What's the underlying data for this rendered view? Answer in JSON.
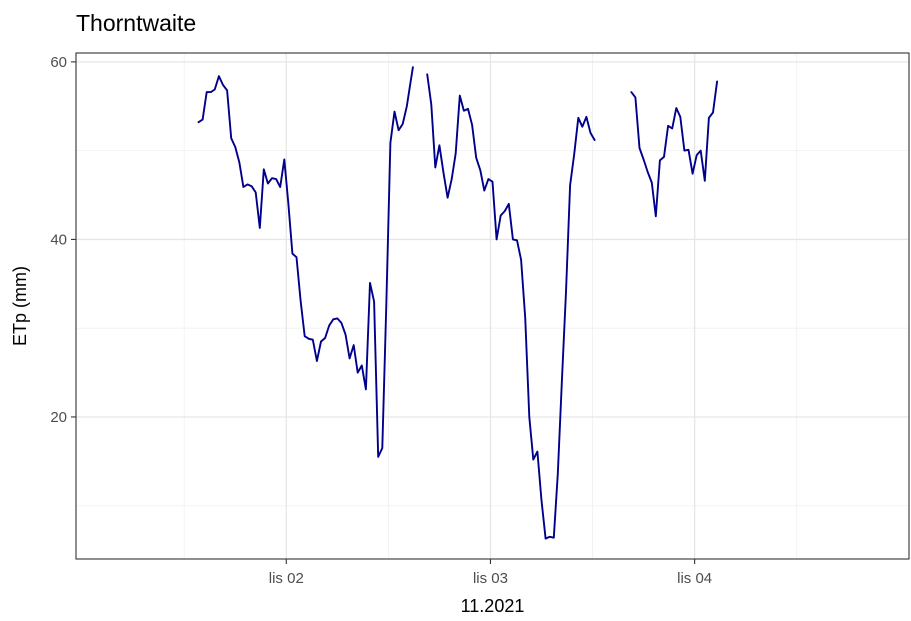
{
  "chart_data": {
    "type": "line",
    "title": "Thorntwaite",
    "xlabel": "11.2021",
    "ylabel": "ETp (mm)",
    "xlim": [
      -1.03,
      3.05
    ],
    "ylim": [
      4.0,
      61.0
    ],
    "grid": true,
    "legend": "none",
    "x_ticks": [
      {
        "value": 0,
        "label": "lis 02"
      },
      {
        "value": 1,
        "label": "lis 03"
      },
      {
        "value": 2,
        "label": "lis 04"
      }
    ],
    "y_ticks": [
      {
        "value": 20,
        "label": "20"
      },
      {
        "value": 40,
        "label": "40"
      },
      {
        "value": 60,
        "label": "60"
      }
    ],
    "series": [
      {
        "color": "#00008b",
        "segments": [
          [
            [
              -0.43,
              53.2
            ],
            [
              -0.41,
              53.5
            ],
            [
              -0.39,
              56.6
            ],
            [
              -0.37,
              56.6
            ],
            [
              -0.35,
              56.9
            ],
            [
              -0.33,
              58.4
            ],
            [
              -0.31,
              57.4
            ],
            [
              -0.29,
              56.8
            ],
            [
              -0.27,
              51.4
            ],
            [
              -0.25,
              50.4
            ],
            [
              -0.23,
              48.7
            ],
            [
              -0.21,
              45.9
            ],
            [
              -0.19,
              46.2
            ],
            [
              -0.17,
              46.0
            ],
            [
              -0.15,
              45.3
            ],
            [
              -0.13,
              41.3
            ],
            [
              -0.11,
              47.9
            ],
            [
              -0.09,
              46.3
            ],
            [
              -0.07,
              46.9
            ],
            [
              -0.05,
              46.8
            ],
            [
              -0.03,
              45.9
            ],
            [
              -0.01,
              49.0
            ],
            [
              0.01,
              44.1
            ],
            [
              0.03,
              38.4
            ],
            [
              0.05,
              38.0
            ],
            [
              0.07,
              33.1
            ],
            [
              0.09,
              29.1
            ],
            [
              0.11,
              28.8
            ],
            [
              0.13,
              28.7
            ],
            [
              0.15,
              26.3
            ],
            [
              0.17,
              28.5
            ],
            [
              0.19,
              28.9
            ],
            [
              0.21,
              30.3
            ],
            [
              0.23,
              31.0
            ],
            [
              0.25,
              31.1
            ],
            [
              0.27,
              30.6
            ],
            [
              0.29,
              29.3
            ],
            [
              0.31,
              26.6
            ],
            [
              0.33,
              28.1
            ],
            [
              0.35,
              25.0
            ],
            [
              0.37,
              25.8
            ],
            [
              0.39,
              23.1
            ],
            [
              0.41,
              35.1
            ],
            [
              0.43,
              33.0
            ],
            [
              0.45,
              15.5
            ],
            [
              0.47,
              16.5
            ],
            [
              0.49,
              32.6
            ],
            [
              0.51,
              50.9
            ],
            [
              0.53,
              54.4
            ],
            [
              0.55,
              52.3
            ],
            [
              0.57,
              53.0
            ],
            [
              0.59,
              55.0
            ],
            [
              0.61,
              57.9
            ],
            [
              0.62,
              59.4
            ]
          ],
          [
            [
              0.69,
              58.6
            ],
            [
              0.71,
              55.2
            ],
            [
              0.73,
              48.1
            ],
            [
              0.75,
              50.6
            ],
            [
              0.77,
              47.5
            ],
            [
              0.79,
              44.7
            ],
            [
              0.81,
              46.8
            ],
            [
              0.83,
              49.7
            ],
            [
              0.85,
              56.2
            ],
            [
              0.87,
              54.5
            ],
            [
              0.89,
              54.7
            ],
            [
              0.91,
              52.9
            ],
            [
              0.93,
              49.2
            ],
            [
              0.95,
              47.8
            ],
            [
              0.97,
              45.5
            ],
            [
              0.99,
              46.8
            ],
            [
              1.01,
              46.5
            ],
            [
              1.03,
              40.0
            ],
            [
              1.05,
              42.7
            ],
            [
              1.07,
              43.2
            ],
            [
              1.09,
              44.0
            ],
            [
              1.11,
              40.0
            ],
            [
              1.13,
              39.9
            ],
            [
              1.15,
              37.7
            ],
            [
              1.17,
              31.2
            ],
            [
              1.19,
              20.0
            ],
            [
              1.21,
              15.2
            ],
            [
              1.23,
              16.1
            ],
            [
              1.25,
              10.6
            ],
            [
              1.27,
              6.3
            ],
            [
              1.29,
              6.5
            ],
            [
              1.31,
              6.4
            ],
            [
              1.33,
              13.6
            ],
            [
              1.35,
              24.1
            ],
            [
              1.37,
              34.1
            ],
            [
              1.39,
              46.1
            ],
            [
              1.41,
              49.6
            ],
            [
              1.43,
              53.7
            ],
            [
              1.45,
              52.7
            ],
            [
              1.47,
              53.8
            ],
            [
              1.49,
              52.0
            ],
            [
              1.51,
              51.2
            ]
          ],
          [
            [
              1.69,
              56.6
            ],
            [
              1.71,
              56.0
            ],
            [
              1.73,
              50.3
            ],
            [
              1.75,
              49.0
            ],
            [
              1.77,
              47.6
            ],
            [
              1.79,
              46.4
            ],
            [
              1.81,
              42.6
            ],
            [
              1.83,
              48.9
            ],
            [
              1.85,
              49.3
            ],
            [
              1.87,
              52.8
            ],
            [
              1.89,
              52.5
            ],
            [
              1.91,
              54.8
            ],
            [
              1.93,
              53.8
            ],
            [
              1.95,
              50.0
            ],
            [
              1.97,
              50.1
            ],
            [
              1.99,
              47.4
            ],
            [
              2.01,
              49.5
            ],
            [
              2.03,
              50.0
            ],
            [
              2.05,
              46.6
            ],
            [
              2.07,
              53.7
            ],
            [
              2.09,
              54.3
            ],
            [
              2.11,
              57.8
            ]
          ]
        ]
      }
    ]
  }
}
